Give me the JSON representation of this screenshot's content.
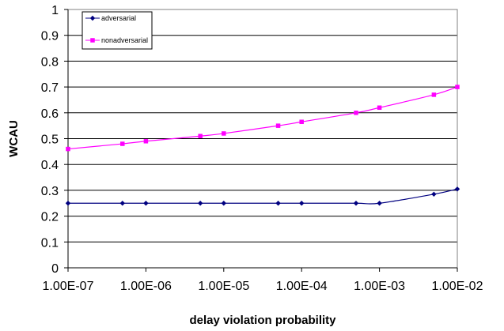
{
  "chart_data": {
    "type": "line",
    "title": "",
    "xlabel": "delay violation probability",
    "ylabel": "WCAU",
    "x_scale": "log",
    "x_ticks": [
      "1.00E-07",
      "1.00E-06",
      "1.00E-05",
      "1.00E-04",
      "1.00E-03",
      "1.00E-02"
    ],
    "y_ticks": [
      "0",
      "0.1",
      "0.2",
      "0.3",
      "0.4",
      "0.5",
      "0.6",
      "0.7",
      "0.8",
      "0.9",
      "1"
    ],
    "xlim": [
      1e-07,
      0.01
    ],
    "ylim": [
      0,
      1
    ],
    "grid": "horizontal",
    "legend_position": "top-left",
    "series": [
      {
        "name": "adversarial",
        "color": "#000080",
        "marker": "diamond",
        "x": [
          1e-07,
          5e-07,
          1e-06,
          5e-06,
          1e-05,
          5e-05,
          0.0001,
          0.0005,
          0.001,
          0.005,
          0.01
        ],
        "y": [
          0.25,
          0.25,
          0.25,
          0.25,
          0.25,
          0.25,
          0.25,
          0.25,
          0.25,
          0.285,
          0.305
        ]
      },
      {
        "name": "nonadversarial",
        "color": "#ff00ff",
        "marker": "square",
        "x": [
          1e-07,
          5e-07,
          1e-06,
          5e-06,
          1e-05,
          5e-05,
          0.0001,
          0.0005,
          0.001,
          0.005,
          0.01
        ],
        "y": [
          0.46,
          0.48,
          0.49,
          0.51,
          0.52,
          0.55,
          0.565,
          0.6,
          0.62,
          0.67,
          0.7
        ]
      }
    ]
  }
}
